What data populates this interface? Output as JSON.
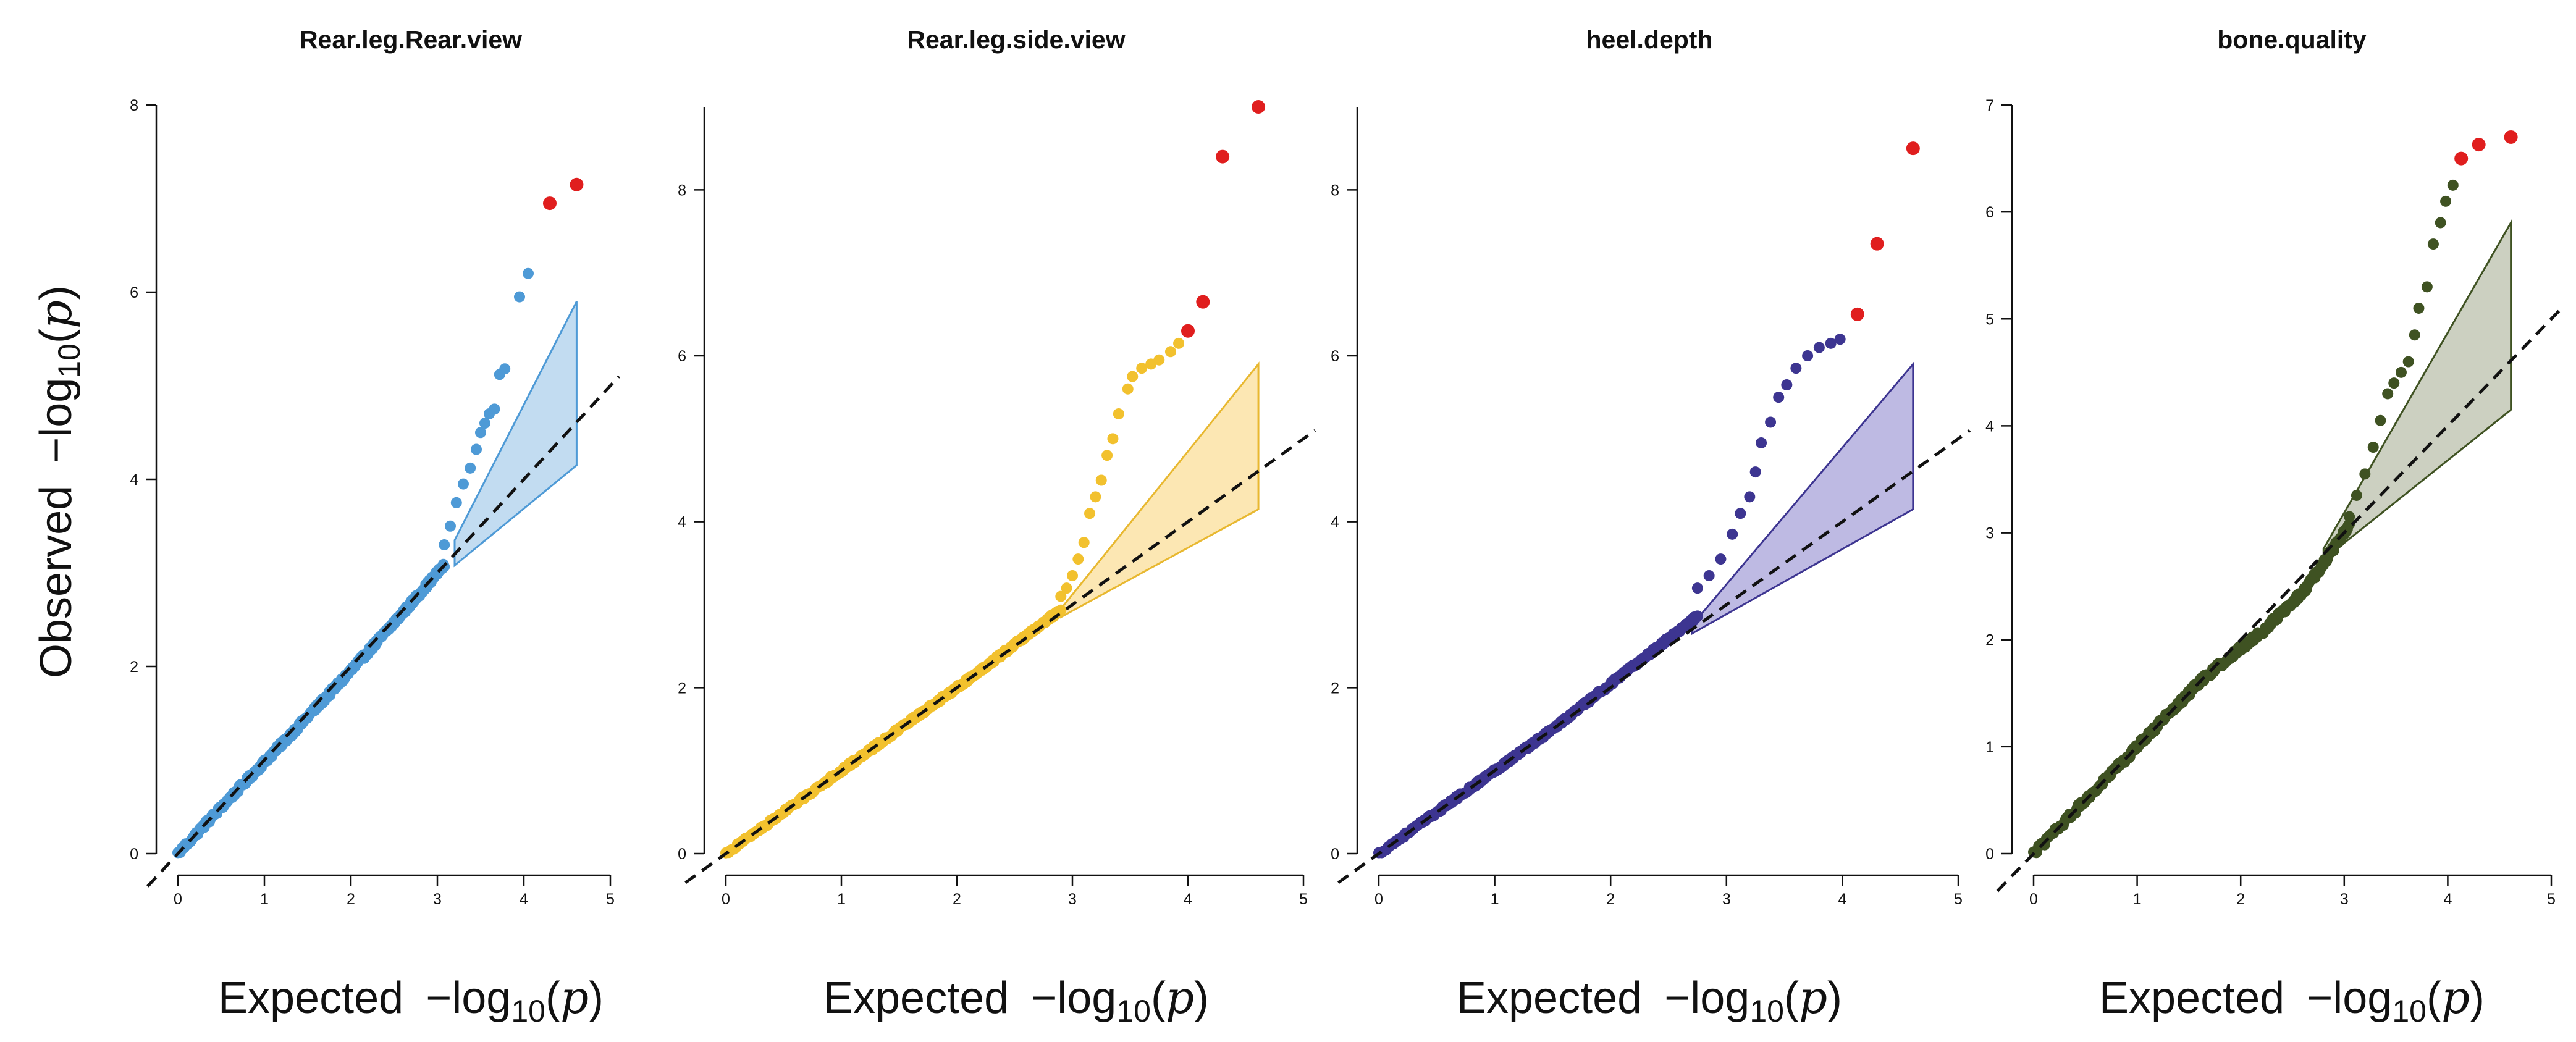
{
  "chart_data": [
    {
      "type": "scatter",
      "subtype": "qq-plot",
      "title": "Rear.leg.Rear.view",
      "xlabel": "Expected",
      "ylabel": "Observed",
      "axis_expr": "−log",
      "axis_sub": "10",
      "axis_arg": "p",
      "xlim": [
        0,
        5
      ],
      "ylim": [
        0,
        8
      ],
      "xticks": [
        0,
        1,
        2,
        3,
        4,
        5
      ],
      "yticks": [
        0,
        2,
        4,
        6,
        8
      ],
      "n_points": 41000,
      "confidence_band": {
        "x": [
          3.2,
          4.61
        ],
        "lower": [
          3.08,
          4.15
        ],
        "upper": [
          3.35,
          5.9
        ]
      },
      "reference_line": "y = x",
      "color": "#4e9ad6",
      "band_fill": "#b7d6ef",
      "band_stroke": "#4e9ad6",
      "highlight_color": "#e01e1e",
      "points": [
        [
          3.08,
          3.3
        ],
        [
          3.15,
          3.5
        ],
        [
          3.22,
          3.75
        ],
        [
          3.3,
          3.95
        ],
        [
          3.38,
          4.12
        ],
        [
          3.45,
          4.32
        ],
        [
          3.5,
          4.5
        ],
        [
          3.55,
          4.6
        ],
        [
          3.6,
          4.7
        ],
        [
          3.66,
          4.75
        ],
        [
          3.72,
          5.12
        ],
        [
          3.78,
          5.18
        ],
        [
          3.95,
          5.95
        ],
        [
          4.05,
          6.2
        ]
      ],
      "highlighted": [
        [
          4.3,
          6.95
        ],
        [
          4.61,
          7.15
        ]
      ]
    },
    {
      "type": "scatter",
      "subtype": "qq-plot",
      "title": "Rear.leg.side.view",
      "xlabel": "Expected",
      "ylabel": "",
      "axis_expr": "−log",
      "axis_sub": "10",
      "axis_arg": "p",
      "xlim": [
        0,
        5
      ],
      "ylim": [
        0,
        9
      ],
      "xticks": [
        0,
        1,
        2,
        3,
        4,
        5
      ],
      "yticks": [
        0,
        2,
        4,
        6,
        8
      ],
      "n_points": 41000,
      "confidence_band": {
        "x": [
          2.9,
          4.61
        ],
        "lower": [
          2.85,
          4.15
        ],
        "upper": [
          2.95,
          5.9
        ]
      },
      "reference_line": "y = x",
      "color": "#f2c12e",
      "band_fill": "#fbe3a6",
      "band_stroke": "#e8b830",
      "highlight_color": "#e01e1e",
      "points": [
        [
          2.9,
          3.1
        ],
        [
          2.95,
          3.2
        ],
        [
          3.0,
          3.35
        ],
        [
          3.05,
          3.55
        ],
        [
          3.1,
          3.75
        ],
        [
          3.15,
          4.1
        ],
        [
          3.2,
          4.3
        ],
        [
          3.25,
          4.5
        ],
        [
          3.3,
          4.8
        ],
        [
          3.35,
          5.0
        ],
        [
          3.4,
          5.3
        ],
        [
          3.48,
          5.6
        ],
        [
          3.52,
          5.75
        ],
        [
          3.6,
          5.85
        ],
        [
          3.68,
          5.9
        ],
        [
          3.75,
          5.95
        ],
        [
          3.85,
          6.05
        ],
        [
          3.92,
          6.15
        ]
      ],
      "highlighted": [
        [
          4.0,
          6.3
        ],
        [
          4.13,
          6.65
        ],
        [
          4.3,
          8.4
        ],
        [
          4.61,
          9.0
        ]
      ]
    },
    {
      "type": "scatter",
      "subtype": "qq-plot",
      "title": "heel.depth",
      "xlabel": "Expected",
      "ylabel": "",
      "axis_expr": "−log",
      "axis_sub": "10",
      "axis_arg": "p",
      "xlim": [
        0,
        5
      ],
      "ylim": [
        0,
        9
      ],
      "xticks": [
        0,
        1,
        2,
        3,
        4,
        5
      ],
      "yticks": [
        0,
        2,
        4,
        6,
        8
      ],
      "n_points": 41000,
      "confidence_band": {
        "x": [
          2.7,
          4.61
        ],
        "lower": [
          2.65,
          4.15
        ],
        "upper": [
          2.75,
          5.9
        ]
      },
      "reference_line": "y = x",
      "color": "#3d3591",
      "band_fill": "#b3aede",
      "band_stroke": "#3d3591",
      "highlight_color": "#e01e1e",
      "points": [
        [
          2.75,
          3.2
        ],
        [
          2.85,
          3.35
        ],
        [
          2.95,
          3.55
        ],
        [
          3.05,
          3.85
        ],
        [
          3.12,
          4.1
        ],
        [
          3.2,
          4.3
        ],
        [
          3.25,
          4.6
        ],
        [
          3.3,
          4.95
        ],
        [
          3.38,
          5.2
        ],
        [
          3.45,
          5.5
        ],
        [
          3.52,
          5.65
        ],
        [
          3.6,
          5.85
        ],
        [
          3.7,
          6.0
        ],
        [
          3.8,
          6.1
        ],
        [
          3.9,
          6.15
        ],
        [
          3.98,
          6.2
        ]
      ],
      "highlighted": [
        [
          4.13,
          6.5
        ],
        [
          4.3,
          7.35
        ],
        [
          4.61,
          8.5
        ]
      ]
    },
    {
      "type": "scatter",
      "subtype": "qq-plot",
      "title": "bone.quality",
      "xlabel": "Expected",
      "ylabel": "",
      "axis_expr": "−log",
      "axis_sub": "10",
      "axis_arg": "p",
      "xlim": [
        0,
        5
      ],
      "ylim": [
        0,
        7
      ],
      "xticks": [
        0,
        1,
        2,
        3,
        4,
        5
      ],
      "yticks": [
        0,
        1,
        2,
        3,
        4,
        5,
        6,
        7
      ],
      "n_points": 41000,
      "confidence_band": {
        "x": [
          2.8,
          4.61
        ],
        "lower": [
          2.75,
          4.15
        ],
        "upper": [
          2.85,
          5.9
        ]
      },
      "reference_line": "y = x",
      "color": "#3f5222",
      "band_fill": "#c3c8b6",
      "band_stroke": "#3f5222",
      "highlight_color": "#e01e1e",
      "points": [
        [
          3.05,
          3.15
        ],
        [
          3.12,
          3.35
        ],
        [
          3.2,
          3.55
        ],
        [
          3.28,
          3.8
        ],
        [
          3.35,
          4.05
        ],
        [
          3.42,
          4.3
        ],
        [
          3.48,
          4.4
        ],
        [
          3.55,
          4.5
        ],
        [
          3.62,
          4.6
        ],
        [
          3.68,
          4.85
        ],
        [
          3.72,
          5.1
        ],
        [
          3.8,
          5.3
        ],
        [
          3.86,
          5.7
        ],
        [
          3.93,
          5.9
        ],
        [
          3.98,
          6.1
        ],
        [
          4.05,
          6.25
        ]
      ],
      "highlighted": [
        [
          4.13,
          6.5
        ],
        [
          4.3,
          6.63
        ],
        [
          4.61,
          6.7
        ]
      ]
    }
  ]
}
